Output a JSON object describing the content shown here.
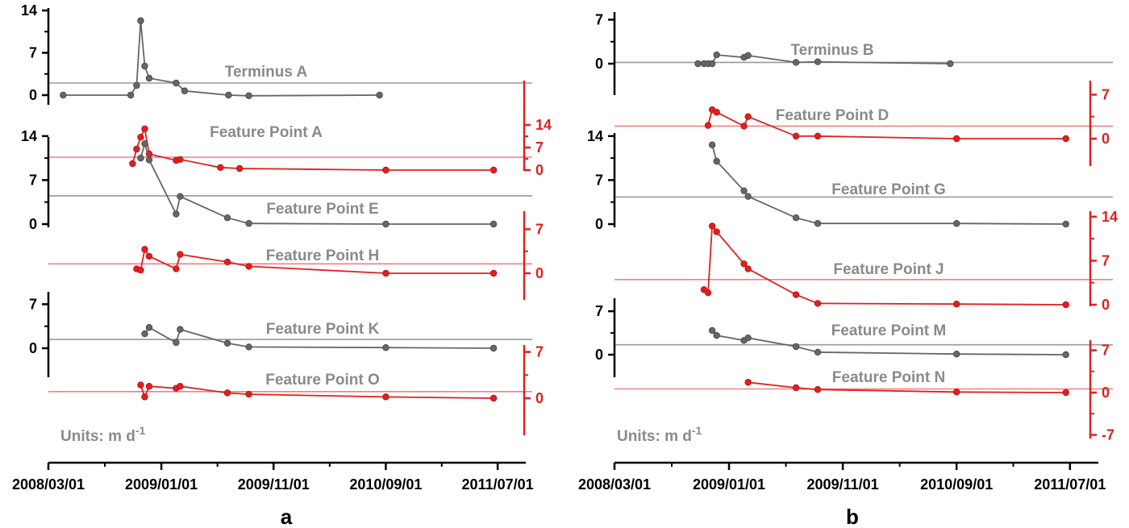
{
  "chart_data": [
    {
      "panel": "a",
      "type": "line",
      "units": "Units: m d",
      "units_sup": "-1",
      "x_ticks": [
        "2008/03/01",
        "2009/01/01",
        "2009/11/01",
        "2010/09/01",
        "2011/07/01"
      ],
      "xlim": [
        "2008/03/01",
        "2011/08/20"
      ],
      "colors": {
        "gray": "#666666",
        "red": "#e02020",
        "grayref": "#9a9a9a",
        "redref": "#f08080"
      },
      "traces": [
        {
          "name": "Terminus A",
          "color": "gray",
          "axis_side": "left",
          "yticks": [
            0,
            7,
            14
          ],
          "ref": 2,
          "x": [
            "2008/04/10",
            "2008/10/10",
            "2008/10/26",
            "2008/11/06",
            "2008/11/17",
            "2008/11/29",
            "2009/02/10",
            "2009/03/05",
            "2009/07/02",
            "2009/08/26",
            "2010/08/15"
          ],
          "y": [
            0,
            0,
            1.6,
            12.3,
            4.8,
            2.8,
            2.0,
            0.7,
            0,
            -0.1,
            0
          ]
        },
        {
          "name": "Feature Point A",
          "color": "red",
          "axis_side": "right",
          "yticks": [
            0,
            7,
            14
          ],
          "ref": 4,
          "x": [
            "2008/10/15",
            "2008/10/26",
            "2008/11/06",
            "2008/11/17",
            "2008/11/29",
            "2009/02/10",
            "2009/02/21",
            "2009/06/10",
            "2009/08/01",
            "2010/09/01",
            "2011/06/20"
          ],
          "y": [
            2,
            6.5,
            10.2,
            12.8,
            5,
            3,
            3.3,
            0.8,
            0.5,
            0,
            0
          ]
        },
        {
          "name": "Feature Point E",
          "color": "gray",
          "axis_side": "left",
          "yticks": [
            0,
            7,
            14
          ],
          "ref": 4.5,
          "x": [
            "2008/11/06",
            "2008/11/17",
            "2008/11/29",
            "2009/02/10",
            "2009/02/21",
            "2009/06/29",
            "2009/08/26",
            "2010/09/01",
            "2011/06/20"
          ],
          "y": [
            10.5,
            12.8,
            10.2,
            1.6,
            4.4,
            1.0,
            0.1,
            0,
            0
          ]
        },
        {
          "name": "Feature Point H",
          "color": "red",
          "axis_side": "right",
          "yticks": [
            0,
            7
          ],
          "ref": 1.5,
          "x": [
            "2008/10/26",
            "2008/11/06",
            "2008/11/17",
            "2008/11/29",
            "2009/02/10",
            "2009/02/21",
            "2009/06/29",
            "2009/08/26",
            "2010/09/01",
            "2011/06/20"
          ],
          "y": [
            0.7,
            0.5,
            3.8,
            2.7,
            0.7,
            3.0,
            1.8,
            1.1,
            0,
            0
          ]
        },
        {
          "name": "Feature Point K",
          "color": "gray",
          "axis_side": "left",
          "yticks": [
            0,
            7
          ],
          "ref": 1.4,
          "x": [
            "2008/11/17",
            "2008/11/29",
            "2009/02/10",
            "2009/02/21",
            "2009/06/29",
            "2009/08/26",
            "2010/09/01",
            "2011/06/20"
          ],
          "y": [
            2.3,
            3.3,
            0.9,
            3.0,
            0.8,
            0.2,
            0.1,
            0
          ]
        },
        {
          "name": "Feature Point O",
          "color": "red",
          "axis_side": "right",
          "yticks": [
            0,
            7
          ],
          "ref": 1,
          "x": [
            "2008/11/06",
            "2008/11/17",
            "2008/11/29",
            "2009/02/10",
            "2009/02/21",
            "2009/06/29",
            "2009/08/26",
            "2010/09/01",
            "2011/06/20"
          ],
          "y": [
            2,
            0.2,
            1.8,
            1.5,
            1.8,
            0.8,
            0.6,
            0.2,
            0
          ]
        }
      ]
    },
    {
      "panel": "b",
      "type": "line",
      "units": "Units: m d",
      "units_sup": "-1",
      "x_ticks": [
        "2008/03/01",
        "2009/01/01",
        "2009/11/01",
        "2010/09/01",
        "2011/07/01"
      ],
      "xlim": [
        "2008/03/01",
        "2011/08/20"
      ],
      "colors": {
        "gray": "#666666",
        "red": "#e02020",
        "grayref": "#9a9a9a",
        "redref": "#f08080"
      },
      "traces": [
        {
          "name": "Terminus B",
          "color": "gray",
          "axis_side": "left",
          "yticks": [
            0,
            7
          ],
          "ref": 0.2,
          "x": [
            "2008/10/10",
            "2008/10/26",
            "2008/11/06",
            "2008/11/17",
            "2008/11/29",
            "2009/02/10",
            "2009/02/21",
            "2009/06/29",
            "2009/08/26",
            "2010/08/15"
          ],
          "y": [
            0,
            0,
            0,
            0,
            1.4,
            1.0,
            1.3,
            0.2,
            0.3,
            0
          ]
        },
        {
          "name": "Feature Point D",
          "color": "red",
          "axis_side": "right",
          "yticks": [
            0,
            7
          ],
          "ref": 2,
          "x": [
            "2008/11/06",
            "2008/11/17",
            "2008/11/29",
            "2009/02/10",
            "2009/02/21",
            "2009/06/29",
            "2009/08/26",
            "2010/09/01",
            "2011/06/20"
          ],
          "y": [
            2.1,
            4.6,
            4.2,
            2.0,
            3.5,
            0.4,
            0.4,
            0,
            0
          ]
        },
        {
          "name": "Feature Point G",
          "color": "gray",
          "axis_side": "left",
          "yticks": [
            0,
            7,
            14
          ],
          "ref": 4.3,
          "x": [
            "2008/11/17",
            "2008/11/29",
            "2009/02/10",
            "2009/02/21",
            "2009/06/29",
            "2009/08/26",
            "2010/09/01",
            "2011/06/20"
          ],
          "y": [
            12.6,
            10.0,
            5.3,
            4.4,
            1.0,
            0.1,
            0.1,
            0
          ]
        },
        {
          "name": "Feature Point J",
          "color": "red",
          "axis_side": "right",
          "yticks": [
            0,
            7,
            14
          ],
          "ref": 4,
          "x": [
            "2008/10/26",
            "2008/11/06",
            "2008/11/17",
            "2008/11/29",
            "2009/02/10",
            "2009/02/21",
            "2009/06/29",
            "2009/08/26",
            "2010/09/01",
            "2011/06/20"
          ],
          "y": [
            2.4,
            1.9,
            12.5,
            11.6,
            6.5,
            5.7,
            1.6,
            0.2,
            0.1,
            0
          ]
        },
        {
          "name": "Feature Point M",
          "color": "gray",
          "axis_side": "left",
          "yticks": [
            0,
            7
          ],
          "ref": 1.6,
          "x": [
            "2008/11/17",
            "2008/11/29",
            "2009/02/10",
            "2009/02/21",
            "2009/06/29",
            "2009/08/26",
            "2010/09/01",
            "2011/06/20"
          ],
          "y": [
            3.9,
            3.1,
            2.3,
            2.7,
            1.3,
            0.4,
            0.1,
            0
          ]
        },
        {
          "name": "Feature Point N",
          "color": "red",
          "axis_side": "right",
          "yticks": [
            -7,
            0,
            7
          ],
          "ref": 0.6,
          "x": [
            "2009/02/21",
            "2009/06/29",
            "2009/08/26",
            "2010/09/01",
            "2011/06/20"
          ],
          "y": [
            1.7,
            0.8,
            0.5,
            0.1,
            0
          ]
        }
      ]
    }
  ]
}
